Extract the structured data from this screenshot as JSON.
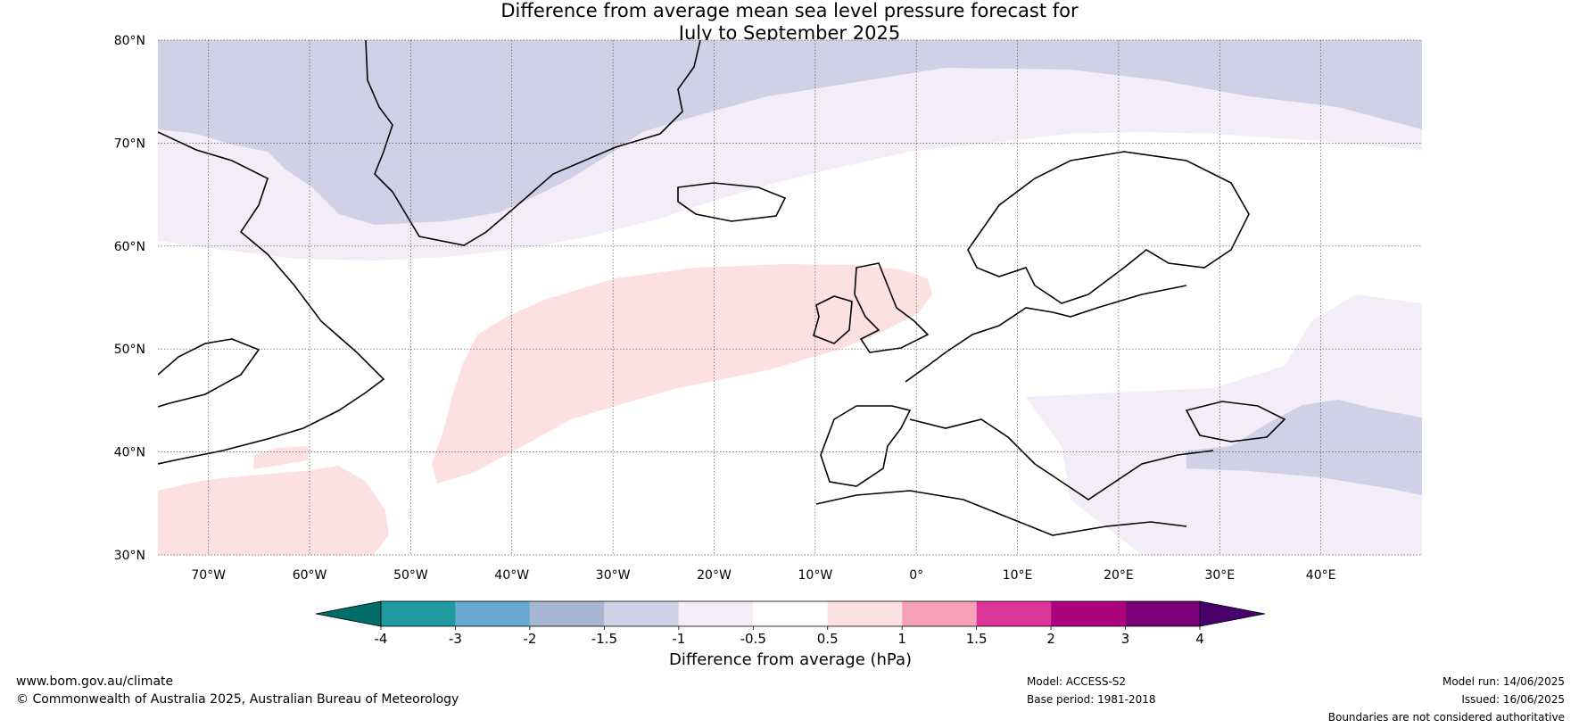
{
  "title": {
    "line1": "Difference from average mean sea level pressure forecast for",
    "line2": "July to September 2025"
  },
  "map": {
    "region": "North Atlantic and Europe",
    "lon_range": [
      -75,
      50
    ],
    "lat_range": [
      30,
      80
    ],
    "lat_ticks": [
      {
        "value": 80,
        "label": "80°N"
      },
      {
        "value": 70,
        "label": "70°N"
      },
      {
        "value": 60,
        "label": "60°N"
      },
      {
        "value": 50,
        "label": "50°N"
      },
      {
        "value": 40,
        "label": "40°N"
      },
      {
        "value": 30,
        "label": "30°N"
      }
    ],
    "lon_ticks": [
      {
        "value": -70,
        "label": "70°W"
      },
      {
        "value": -60,
        "label": "60°W"
      },
      {
        "value": -50,
        "label": "50°W"
      },
      {
        "value": -40,
        "label": "40°W"
      },
      {
        "value": -30,
        "label": "30°W"
      },
      {
        "value": -20,
        "label": "20°W"
      },
      {
        "value": -10,
        "label": "10°W"
      },
      {
        "value": 0,
        "label": "0°"
      },
      {
        "value": 10,
        "label": "10°E"
      },
      {
        "value": 20,
        "label": "20°E"
      },
      {
        "value": 30,
        "label": "30°E"
      },
      {
        "value": 40,
        "label": "40°E"
      }
    ],
    "gridlines": "dotted",
    "colors": {
      "land_outline": "#000000",
      "border": "#777777",
      "band_minus_1_5_to_minus_1": "#d0d1e6",
      "band_minus_1_to_minus_0_5": "#f2edf6",
      "band_0_5_to_1": "#fde0e0"
    }
  },
  "colorbar": {
    "title": "Difference from average (hPa)",
    "ticks": [
      "-4",
      "-3",
      "-2",
      "-1.5",
      "-1",
      "-0.5",
      "0.5",
      "1",
      "1.5",
      "2",
      "3",
      "4"
    ],
    "colors": [
      "#006d6a",
      "#1f9aa0",
      "#67a9cf",
      "#a6b6d3",
      "#d0d1e6",
      "#f2edf6",
      "#ffffff",
      "#fde0e0",
      "#f8a1b8",
      "#dd3497",
      "#ae017e",
      "#7a0177",
      "#49006a"
    ],
    "extend": "both"
  },
  "footer": {
    "website": "www.bom.gov.au/climate",
    "copyright": "© Commonwealth of Australia 2025, Australian Bureau of Meteorology",
    "model": "Model: ACCESS-S2",
    "base_period": "Base period: 1981-2018",
    "model_run": "Model run: 14/06/2025",
    "issued": "Issued: 16/06/2025",
    "disclaimer": "Boundaries are not considered authoritative"
  }
}
